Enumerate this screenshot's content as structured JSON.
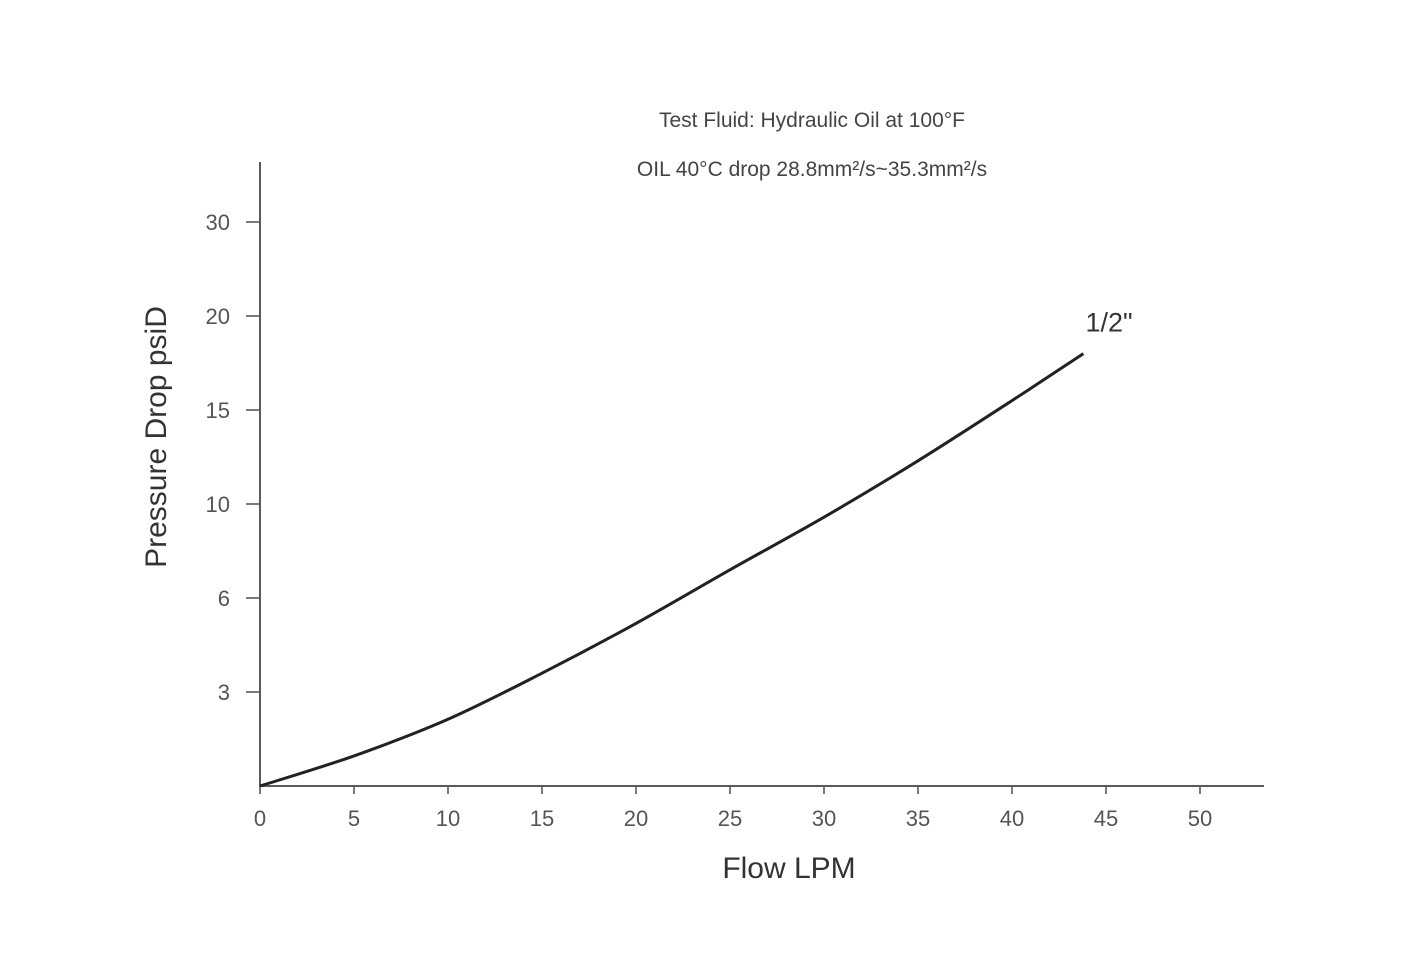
{
  "chart_data": {
    "type": "line",
    "title": "Test Fluid: Hydraulic Oil at 100°F",
    "subtitle": "OIL 40°C drop 28.8mm²/s~35.3mm²/s",
    "xlabel": "Flow LPM",
    "ylabel": "Pressure Drop psiD",
    "xlim": [
      0,
      53
    ],
    "x_ticks": [
      0,
      5,
      10,
      15,
      20,
      25,
      30,
      35,
      40,
      45,
      50
    ],
    "y_ticks": [
      "3",
      "6",
      "10",
      "15",
      "20",
      "30"
    ],
    "grid": false,
    "series": [
      {
        "name": "1/2\"",
        "x": [
          0,
          5,
          10,
          15,
          20,
          25,
          30,
          35,
          40,
          43.8
        ],
        "y_tick_index": [
          0,
          0.32,
          0.71,
          1.2,
          1.73,
          2.3,
          2.86,
          3.46,
          4.1,
          4.6
        ]
      }
    ]
  }
}
